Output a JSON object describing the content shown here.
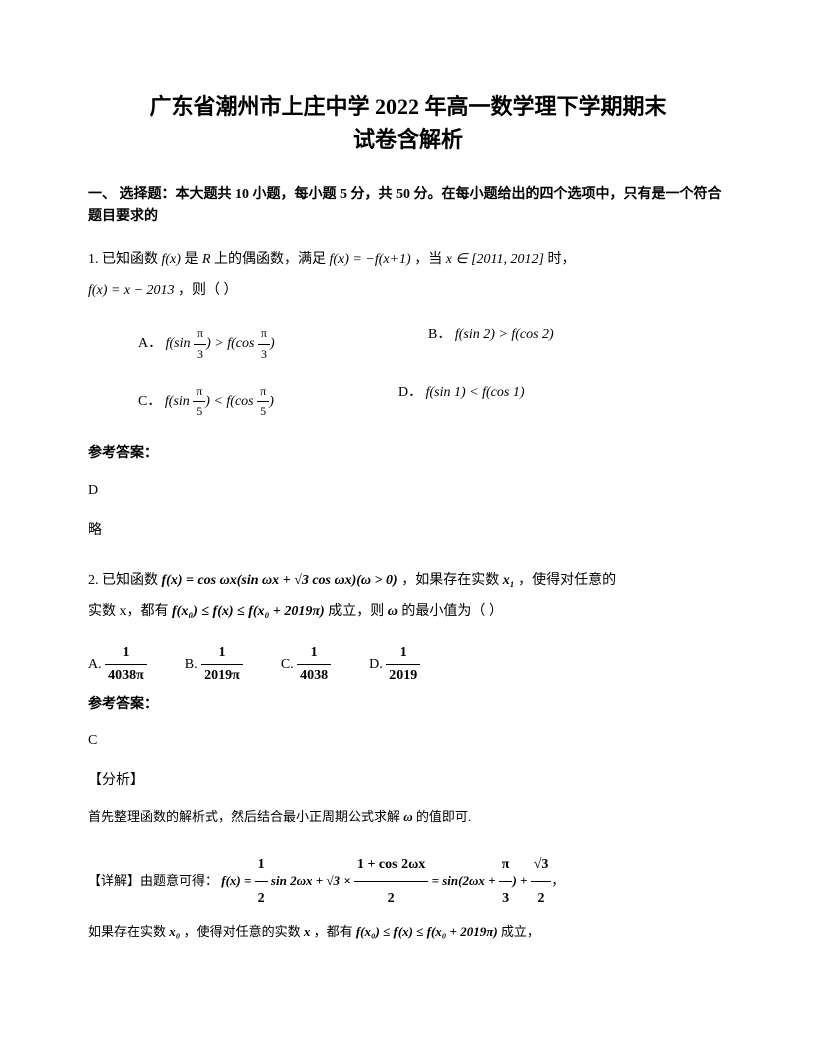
{
  "title_line1": "广东省潮州市上庄中学 2022 年高一数学理下学期期末",
  "title_line2": "试卷含解析",
  "section_header": "一、 选择题：本大题共 10 小题，每小题 5 分，共 50 分。在每小题给出的四个选项中，只有是一个符合题目要求的",
  "q1": {
    "prefix": "1. 已知函数",
    "fx": "f(x)",
    "text1": " 是 ",
    "R": "R",
    "text2": " 上的偶函数，满足 ",
    "eq1": "f(x) = −f(x+1)",
    "text3": "，当 ",
    "range": "x ∈ [2011, 2012]",
    "text4": " 时，",
    "eq2": "f(x) = x − 2013",
    "text5": "，则（          ）",
    "optA_label": "A．",
    "optA_math_left": "f(sin ",
    "optA_frac1_num": "π",
    "optA_frac1_den": "3",
    "optA_math_mid": ") > f(cos ",
    "optA_frac2_num": "π",
    "optA_frac2_den": "3",
    "optA_math_right": ")",
    "optB_label": "B．",
    "optB_math": "f(sin 2) > f(cos 2)",
    "optC_label": "C．",
    "optC_math_left": "f(sin ",
    "optC_frac1_num": "π",
    "optC_frac1_den": "5",
    "optC_math_mid": ") < f(cos ",
    "optC_frac2_num": "π",
    "optC_frac2_den": "5",
    "optC_math_right": ")",
    "optD_label": "D．",
    "optD_math": "f(sin 1) < f(cos 1)"
  },
  "answer_label": "参考答案：",
  "q1_answer": "D",
  "q1_brief": "略",
  "q2": {
    "prefix": "2. 已知函数",
    "fx_eq": "f(x) = cos ωx(sin ωx + √3 cos ωx)(ω > 0)",
    "text1": "，如果存在实数 ",
    "x1": "x₁",
    "text2": "，使得对任意的",
    "text3": "实数 x，都有",
    "ineq": "f(x₀) ≤ f(x) ≤ f(x₀ + 2019π)",
    "text4": " 成立，则 ",
    "omega": "ω",
    "text5": " 的最小值为（      ）",
    "optA_label": "A.",
    "optA_num": "1",
    "optA_den": "4038π",
    "optB_label": "B.",
    "optB_num": "1",
    "optB_den": "2019π",
    "optC_label": "C.",
    "optC_num": "1",
    "optC_den": "4038",
    "optD_label": "D.",
    "optD_num": "1",
    "optD_den": "2019"
  },
  "q2_answer": "C",
  "analysis_label": "【分析】",
  "analysis_text": "首先整理函数的解析式，然后结合最小正周期公式求解",
  "analysis_omega": "ω",
  "analysis_text2": " 的值即可.",
  "detail_label": "【详解】由题意可得：",
  "detail_eq_left": "f(x) = ",
  "detail_frac1_num": "1",
  "detail_frac1_den": "2",
  "detail_eq_mid1": " sin 2ωx + √3 × ",
  "detail_frac2_num": "1 + cos 2ωx",
  "detail_frac2_den": "2",
  "detail_eq_mid2": " = sin(2ωx + ",
  "detail_frac3_num": "π",
  "detail_frac3_den": "3",
  "detail_eq_mid3": ") + ",
  "detail_frac4_num": "√3",
  "detail_frac4_den": "2",
  "detail_text2": "如果存在实数 ",
  "detail_x0": "x₀",
  "detail_text3": "，使得对任意的实数 ",
  "detail_x": "x",
  "detail_text4": "，都有",
  "detail_ineq": "f(x₀) ≤ f(x) ≤ f(x₀ + 2019π)",
  "detail_text5": " 成立，"
}
